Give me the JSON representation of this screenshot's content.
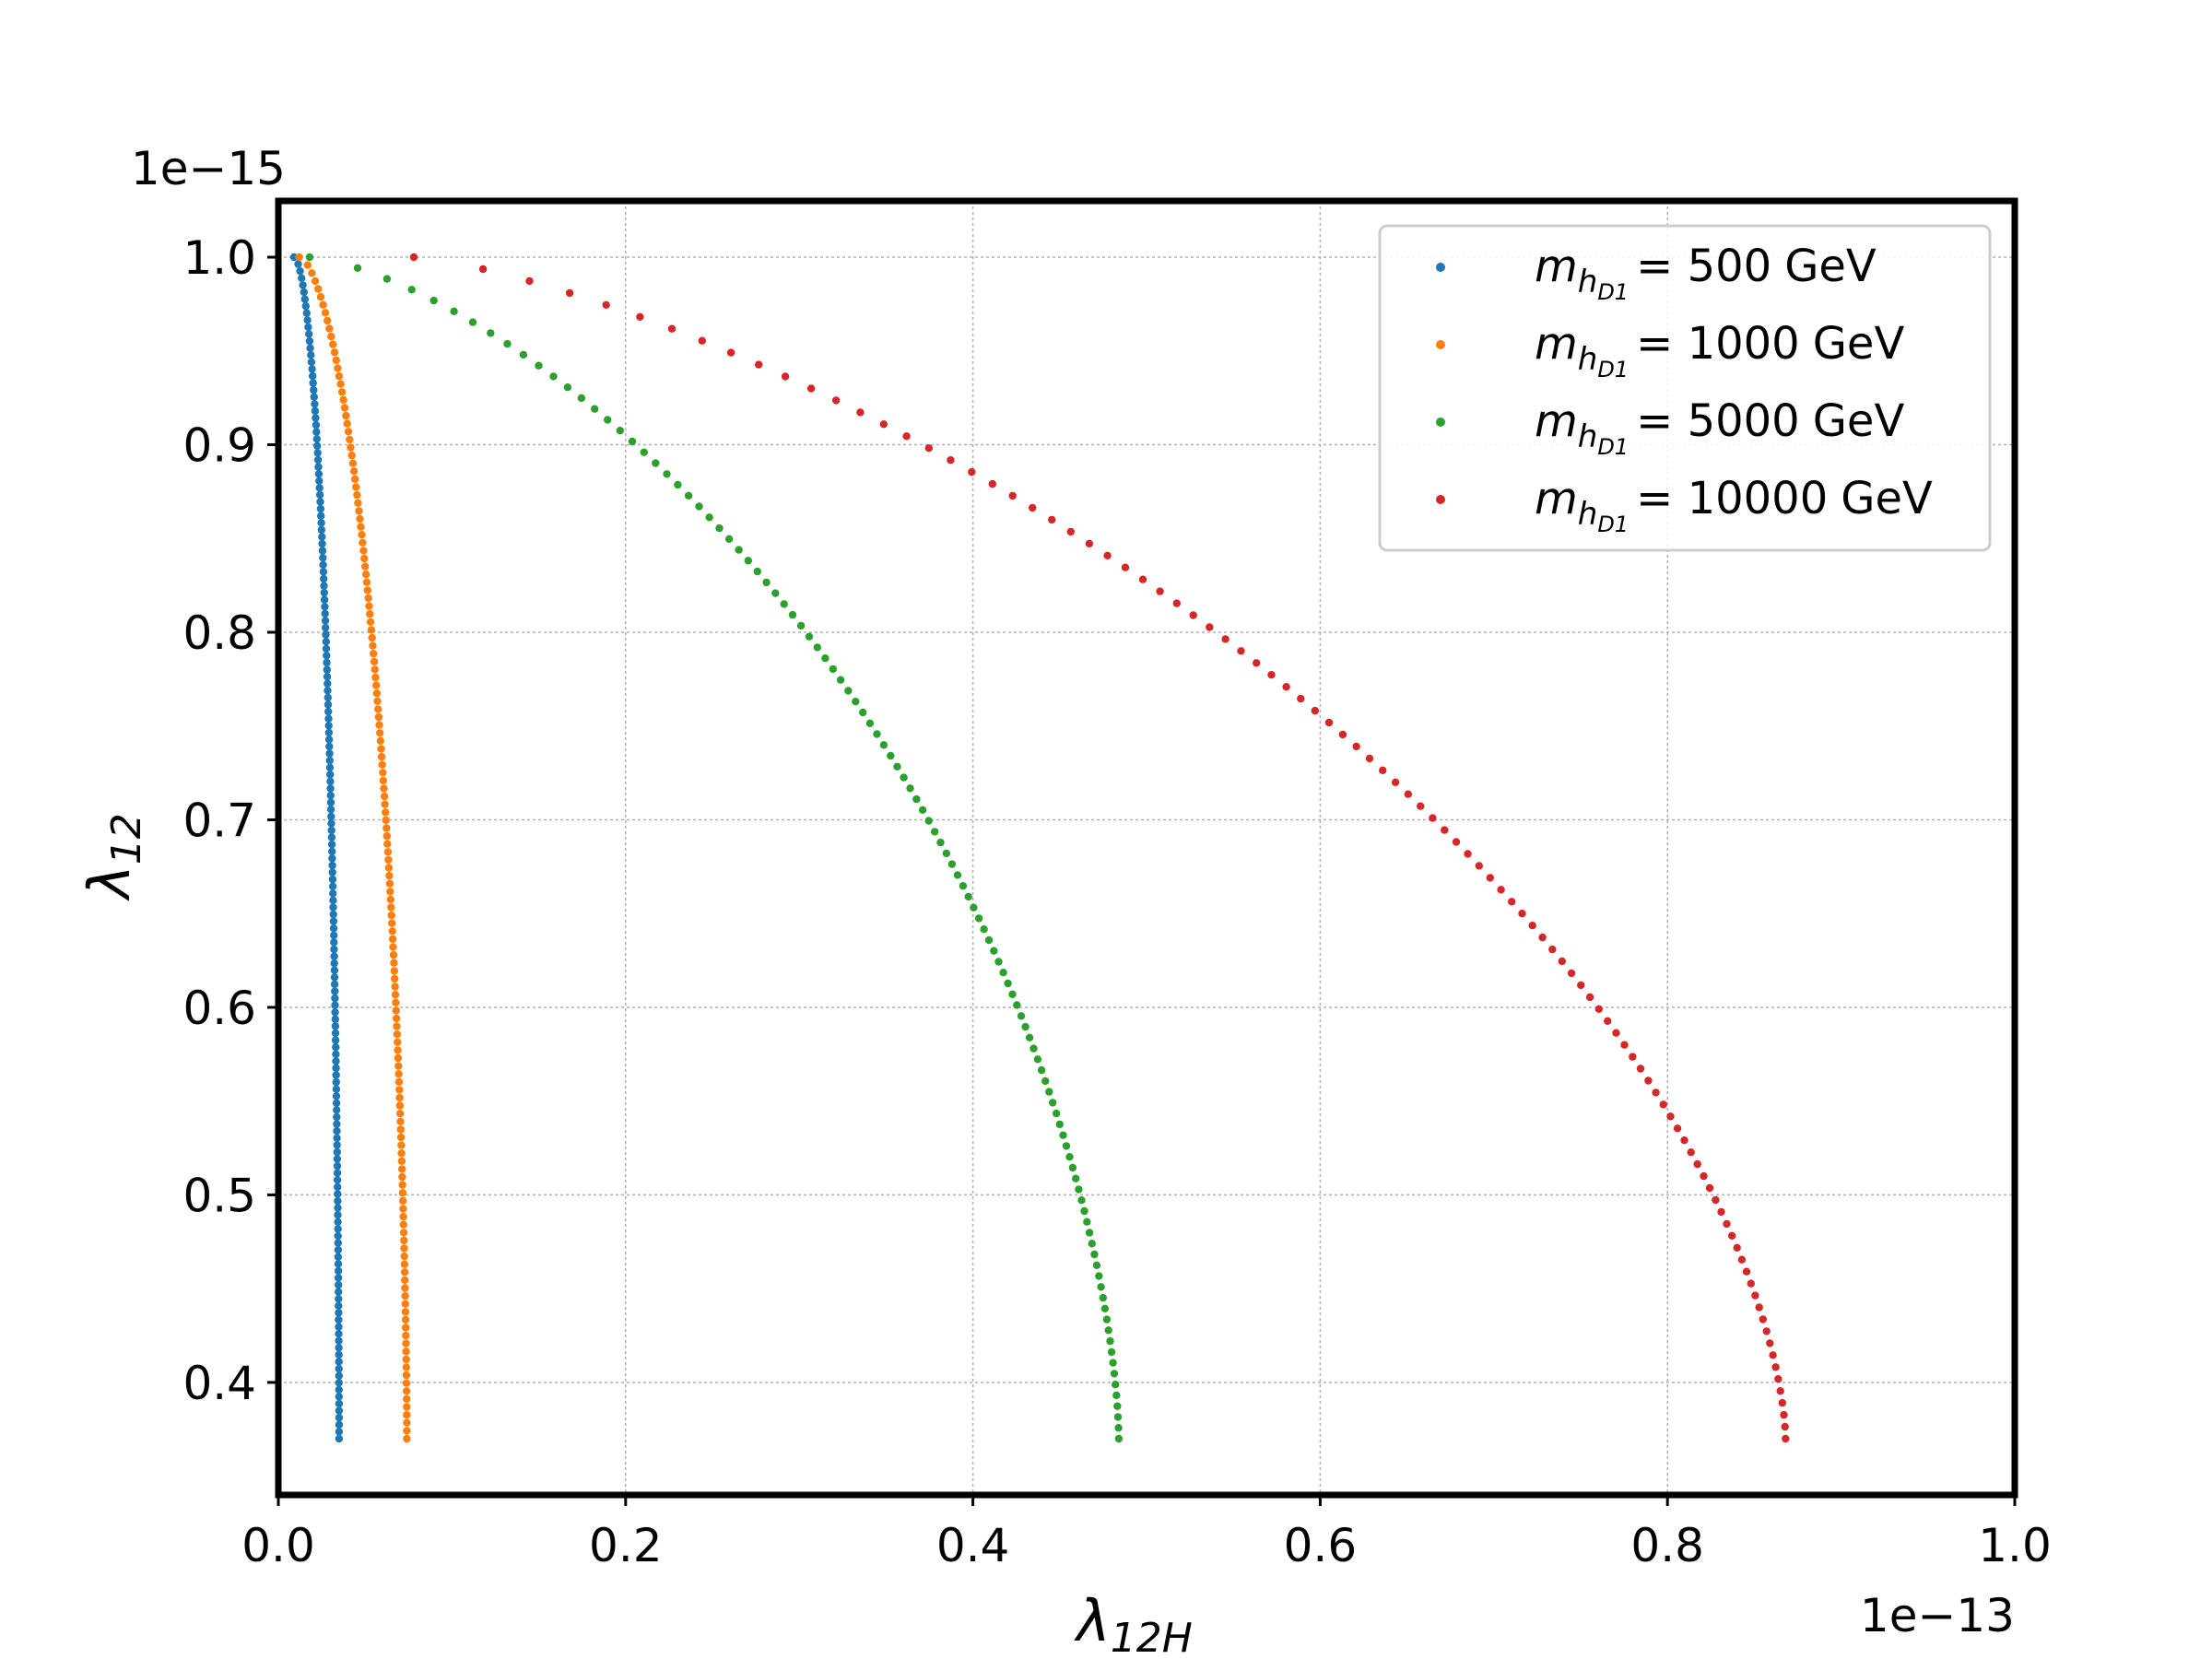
{
  "chart_data": {
    "type": "scatter",
    "title": "",
    "x_offset_label": "1e−13",
    "y_offset_label": "1e−15",
    "xlabel": {
      "symbol": "λ",
      "sub": "12H"
    },
    "ylabel": {
      "symbol": "λ",
      "sub": "12"
    },
    "xlim": [
      0.0,
      1.0
    ],
    "ylim": [
      0.34,
      1.03
    ],
    "xticks": [
      "0.0",
      "0.2",
      "0.4",
      "0.6",
      "0.8",
      "1.0"
    ],
    "yticks": [
      "0.4",
      "0.5",
      "0.6",
      "0.7",
      "0.8",
      "0.9",
      "1.0"
    ],
    "grid": true,
    "legend_position": "top-right",
    "series": [
      {
        "mass": "500",
        "unit": "GeV",
        "label_prefix": "m",
        "label_sub": "h",
        "label_subsub": "D1",
        "color": "#1f77b4",
        "x_top": 0.009,
        "x_mid": 0.028,
        "x_end": 0.035,
        "y_end": 0.37,
        "n": 170,
        "curve": 0.55
      },
      {
        "mass": "1000",
        "unit": "GeV",
        "label_prefix": "m",
        "label_sub": "h",
        "label_subsub": "D1",
        "color": "#ff7f0e",
        "x_top": 0.012,
        "x_mid": 0.062,
        "x_end": 0.074,
        "y_end": 0.37,
        "n": 150,
        "curve": 0.6
      },
      {
        "mass": "5000",
        "unit": "GeV",
        "label_prefix": "m",
        "label_sub": "h",
        "label_subsub": "D1",
        "color": "#2ca02c",
        "x_top": 0.018,
        "x_mid": 0.4,
        "x_end": 0.484,
        "y_end": 0.37,
        "n": 110,
        "curve": 0.7
      },
      {
        "mass": "10000",
        "unit": "GeV",
        "label_prefix": "m",
        "label_sub": "h",
        "label_subsub": "D1",
        "color": "#d62728",
        "x_top": 0.078,
        "x_mid": 0.72,
        "x_end": 0.868,
        "y_end": 0.37,
        "n": 100,
        "curve": 0.75
      }
    ]
  }
}
